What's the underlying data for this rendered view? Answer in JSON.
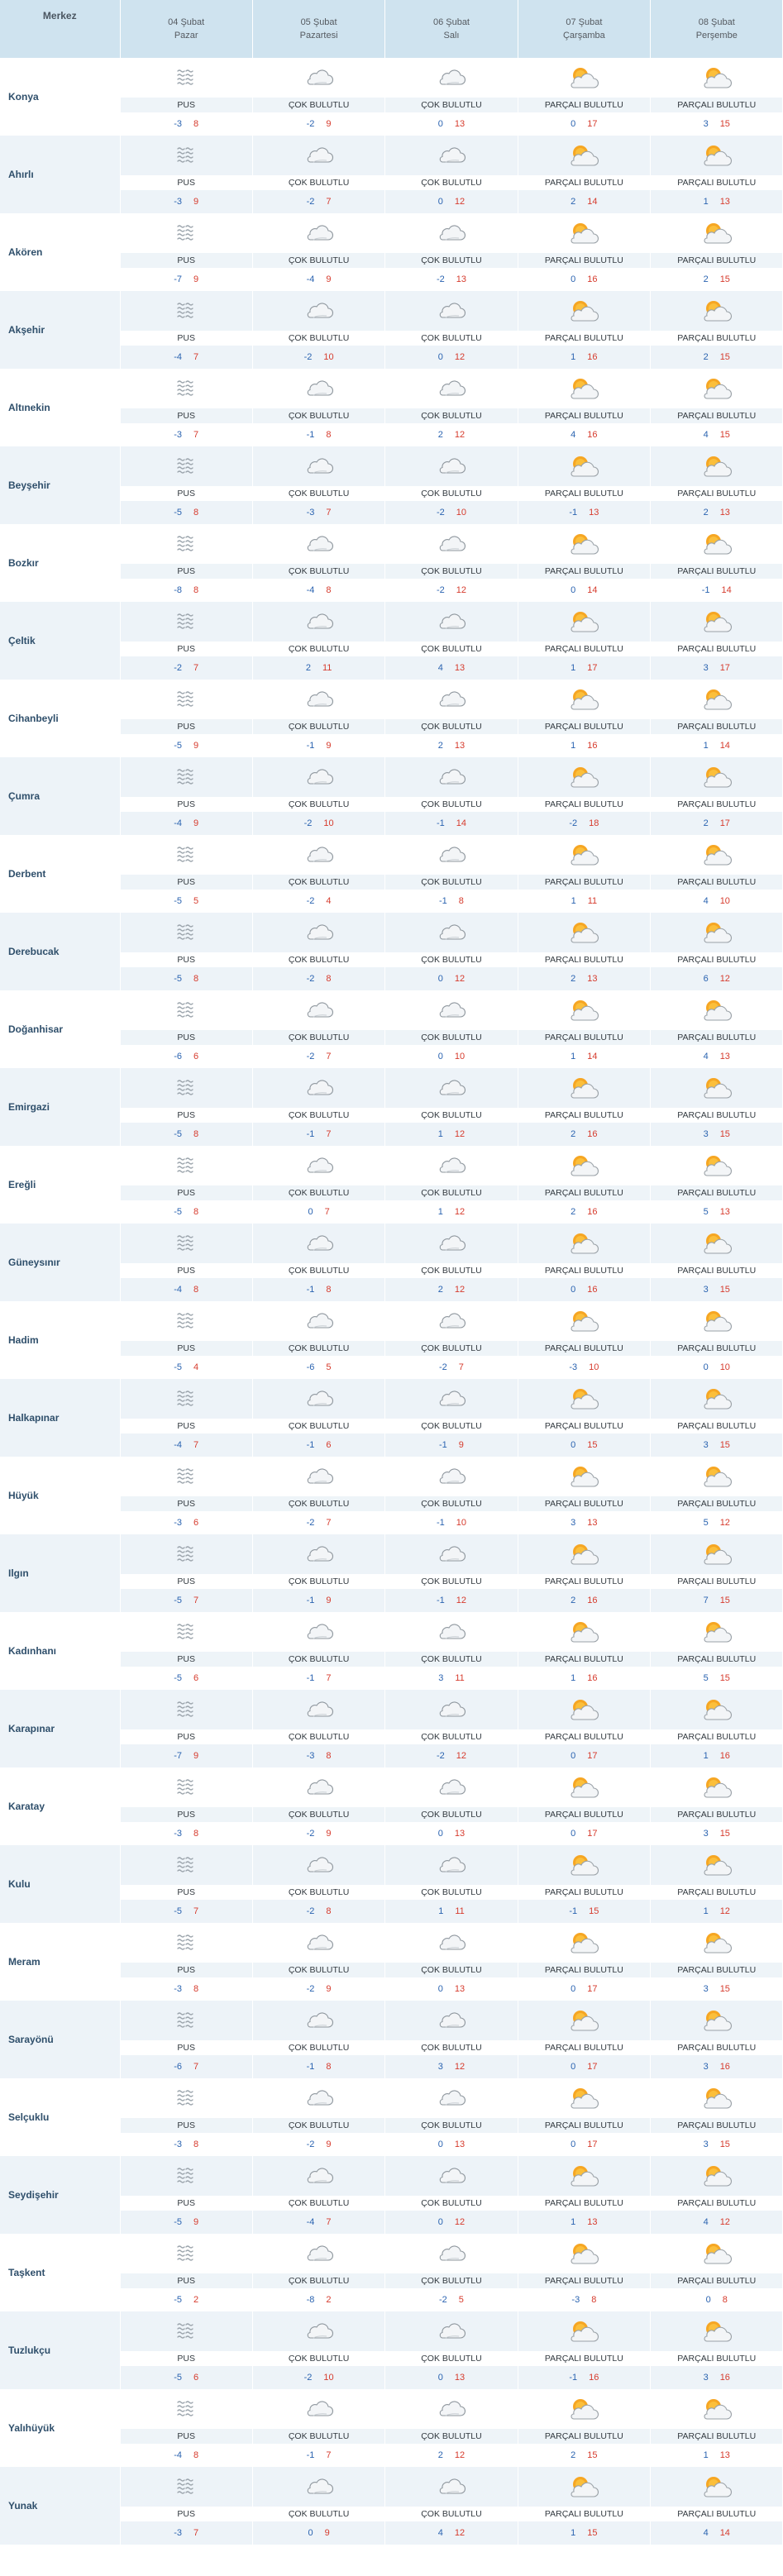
{
  "header": {
    "name_col": "Merkez",
    "days": [
      {
        "date": "04 Şubat",
        "weekday": "Pazar"
      },
      {
        "date": "05 Şubat",
        "weekday": "Pazartesi"
      },
      {
        "date": "06 Şubat",
        "weekday": "Salı"
      },
      {
        "date": "07 Şubat",
        "weekday": "Çarşamba"
      },
      {
        "date": "08 Şubat",
        "weekday": "Perşembe"
      }
    ]
  },
  "conditions": [
    "PUS",
    "ÇOK BULUTLU",
    "ÇOK BULUTLU",
    "PARÇALI BULUTLU",
    "PARÇALI BULUTLU"
  ],
  "icons": [
    "haze-icon",
    "cloudy-icon",
    "cloudy-icon",
    "partly-cloudy-icon",
    "partly-cloudy-icon"
  ],
  "colors": {
    "min": "#2a63b0",
    "max": "#d63b2d",
    "header_bg": "#cfe3ef",
    "stripe_bg": "#edf3f8",
    "name_text": "#2f4f6b"
  },
  "rows": [
    {
      "name": "Konya",
      "temps": [
        [
          -3,
          8
        ],
        [
          -2,
          9
        ],
        [
          0,
          13
        ],
        [
          0,
          17
        ],
        [
          3,
          15
        ]
      ]
    },
    {
      "name": "Ahırlı",
      "temps": [
        [
          -3,
          9
        ],
        [
          -2,
          7
        ],
        [
          0,
          12
        ],
        [
          2,
          14
        ],
        [
          1,
          13
        ]
      ]
    },
    {
      "name": "Akören",
      "temps": [
        [
          -7,
          9
        ],
        [
          -4,
          9
        ],
        [
          -2,
          13
        ],
        [
          0,
          16
        ],
        [
          2,
          15
        ]
      ]
    },
    {
      "name": "Akşehir",
      "temps": [
        [
          -4,
          7
        ],
        [
          -2,
          10
        ],
        [
          0,
          12
        ],
        [
          1,
          16
        ],
        [
          2,
          15
        ]
      ]
    },
    {
      "name": "Altınekin",
      "temps": [
        [
          -3,
          7
        ],
        [
          -1,
          8
        ],
        [
          2,
          12
        ],
        [
          4,
          16
        ],
        [
          4,
          15
        ]
      ]
    },
    {
      "name": "Beyşehir",
      "temps": [
        [
          -5,
          8
        ],
        [
          -3,
          7
        ],
        [
          -2,
          10
        ],
        [
          -1,
          13
        ],
        [
          2,
          13
        ]
      ]
    },
    {
      "name": "Bozkır",
      "temps": [
        [
          -8,
          8
        ],
        [
          -4,
          8
        ],
        [
          -2,
          12
        ],
        [
          0,
          14
        ],
        [
          -1,
          14
        ]
      ]
    },
    {
      "name": "Çeltik",
      "temps": [
        [
          -2,
          7
        ],
        [
          2,
          11
        ],
        [
          4,
          13
        ],
        [
          1,
          17
        ],
        [
          3,
          17
        ]
      ]
    },
    {
      "name": "Cihanbeyli",
      "temps": [
        [
          -5,
          9
        ],
        [
          -1,
          9
        ],
        [
          2,
          13
        ],
        [
          1,
          16
        ],
        [
          1,
          14
        ]
      ]
    },
    {
      "name": "Çumra",
      "temps": [
        [
          -4,
          9
        ],
        [
          -2,
          10
        ],
        [
          -1,
          14
        ],
        [
          -2,
          18
        ],
        [
          2,
          17
        ]
      ]
    },
    {
      "name": "Derbent",
      "temps": [
        [
          -5,
          5
        ],
        [
          -2,
          4
        ],
        [
          -1,
          8
        ],
        [
          1,
          11
        ],
        [
          4,
          10
        ]
      ]
    },
    {
      "name": "Derebucak",
      "temps": [
        [
          -5,
          8
        ],
        [
          -2,
          8
        ],
        [
          0,
          12
        ],
        [
          2,
          13
        ],
        [
          6,
          12
        ]
      ]
    },
    {
      "name": "Doğanhisar",
      "temps": [
        [
          -6,
          6
        ],
        [
          -2,
          7
        ],
        [
          0,
          10
        ],
        [
          1,
          14
        ],
        [
          4,
          13
        ]
      ]
    },
    {
      "name": "Emirgazi",
      "temps": [
        [
          -5,
          8
        ],
        [
          -1,
          7
        ],
        [
          1,
          12
        ],
        [
          2,
          16
        ],
        [
          3,
          15
        ]
      ]
    },
    {
      "name": "Ereğli",
      "temps": [
        [
          -5,
          8
        ],
        [
          0,
          7
        ],
        [
          1,
          12
        ],
        [
          2,
          16
        ],
        [
          5,
          13
        ]
      ]
    },
    {
      "name": "Güneysınır",
      "temps": [
        [
          -4,
          8
        ],
        [
          -1,
          8
        ],
        [
          2,
          12
        ],
        [
          0,
          16
        ],
        [
          3,
          15
        ]
      ]
    },
    {
      "name": "Hadim",
      "temps": [
        [
          -5,
          4
        ],
        [
          -6,
          5
        ],
        [
          -2,
          7
        ],
        [
          -3,
          10
        ],
        [
          0,
          10
        ]
      ]
    },
    {
      "name": "Halkapınar",
      "temps": [
        [
          -4,
          7
        ],
        [
          -1,
          6
        ],
        [
          -1,
          9
        ],
        [
          0,
          15
        ],
        [
          3,
          15
        ]
      ]
    },
    {
      "name": "Hüyük",
      "temps": [
        [
          -3,
          6
        ],
        [
          -2,
          7
        ],
        [
          -1,
          10
        ],
        [
          3,
          13
        ],
        [
          5,
          12
        ]
      ]
    },
    {
      "name": "Ilgın",
      "temps": [
        [
          -5,
          7
        ],
        [
          -1,
          9
        ],
        [
          -1,
          12
        ],
        [
          2,
          16
        ],
        [
          7,
          15
        ]
      ]
    },
    {
      "name": "Kadınhanı",
      "temps": [
        [
          -5,
          6
        ],
        [
          -1,
          7
        ],
        [
          3,
          11
        ],
        [
          1,
          16
        ],
        [
          5,
          15
        ]
      ]
    },
    {
      "name": "Karapınar",
      "temps": [
        [
          -7,
          9
        ],
        [
          -3,
          8
        ],
        [
          -2,
          12
        ],
        [
          0,
          17
        ],
        [
          1,
          16
        ]
      ]
    },
    {
      "name": "Karatay",
      "temps": [
        [
          -3,
          8
        ],
        [
          -2,
          9
        ],
        [
          0,
          13
        ],
        [
          0,
          17
        ],
        [
          3,
          15
        ]
      ]
    },
    {
      "name": "Kulu",
      "temps": [
        [
          -5,
          7
        ],
        [
          -2,
          8
        ],
        [
          1,
          11
        ],
        [
          -1,
          15
        ],
        [
          1,
          12
        ]
      ]
    },
    {
      "name": "Meram",
      "temps": [
        [
          -3,
          8
        ],
        [
          -2,
          9
        ],
        [
          0,
          13
        ],
        [
          0,
          17
        ],
        [
          3,
          15
        ]
      ]
    },
    {
      "name": "Sarayönü",
      "temps": [
        [
          -6,
          7
        ],
        [
          -1,
          8
        ],
        [
          3,
          12
        ],
        [
          0,
          17
        ],
        [
          3,
          16
        ]
      ]
    },
    {
      "name": "Selçuklu",
      "temps": [
        [
          -3,
          8
        ],
        [
          -2,
          9
        ],
        [
          0,
          13
        ],
        [
          0,
          17
        ],
        [
          3,
          15
        ]
      ]
    },
    {
      "name": "Seydişehir",
      "temps": [
        [
          -5,
          9
        ],
        [
          -4,
          7
        ],
        [
          0,
          12
        ],
        [
          1,
          13
        ],
        [
          4,
          12
        ]
      ]
    },
    {
      "name": "Taşkent",
      "temps": [
        [
          -5,
          2
        ],
        [
          -8,
          2
        ],
        [
          -2,
          5
        ],
        [
          -3,
          8
        ],
        [
          0,
          8
        ]
      ]
    },
    {
      "name": "Tuzlukçu",
      "temps": [
        [
          -5,
          6
        ],
        [
          -2,
          10
        ],
        [
          0,
          13
        ],
        [
          -1,
          16
        ],
        [
          3,
          16
        ]
      ]
    },
    {
      "name": "Yalıhüyük",
      "temps": [
        [
          -4,
          8
        ],
        [
          -1,
          7
        ],
        [
          2,
          12
        ],
        [
          2,
          15
        ],
        [
          1,
          13
        ]
      ]
    },
    {
      "name": "Yunak",
      "temps": [
        [
          -3,
          7
        ],
        [
          0,
          9
        ],
        [
          4,
          12
        ],
        [
          1,
          15
        ],
        [
          4,
          14
        ]
      ]
    }
  ]
}
